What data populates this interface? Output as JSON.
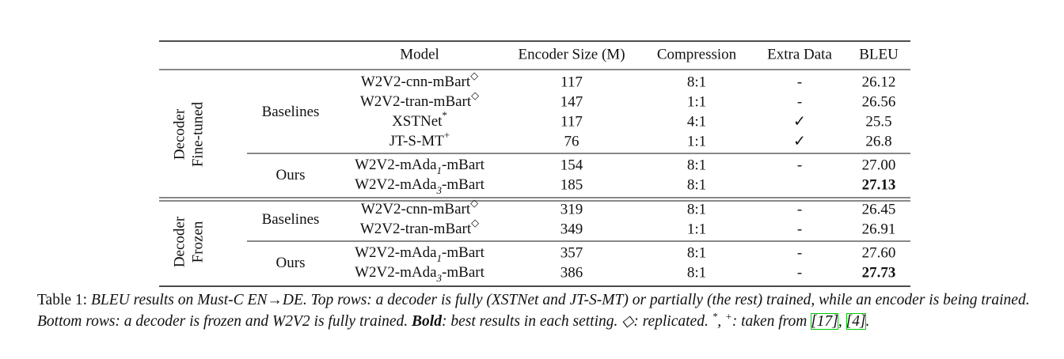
{
  "table": {
    "headers": [
      "Model",
      "Encoder Size (M)",
      "Compression",
      "Extra Data",
      "BLEU"
    ],
    "groups": [
      {
        "label": [
          "Decoder",
          "Fine-tuned"
        ],
        "subgroups": [
          {
            "label": "Baselines",
            "rows": [
              {
                "model": {
                  "name": "W2V2-cnn-mBart",
                  "sup": "◇"
                },
                "cells": [
                  "117",
                  "8:1",
                  "-",
                  "26.12"
                ]
              },
              {
                "model": {
                  "name": "W2V2-tran-mBart",
                  "sup": "◇"
                },
                "cells": [
                  "147",
                  "1:1",
                  "-",
                  "26.56"
                ]
              },
              {
                "model": {
                  "name": "XSTNet",
                  "sup": "*"
                },
                "cells": [
                  "117",
                  "4:1",
                  "✓",
                  "25.5"
                ]
              },
              {
                "model": {
                  "name": "JT-S-MT",
                  "sup": "+"
                },
                "cells": [
                  "76",
                  "1:1",
                  "✓",
                  "26.8"
                ]
              }
            ]
          },
          {
            "label": "Ours",
            "rows": [
              {
                "model": {
                  "name": "W2V2-mAda",
                  "sub": "1",
                  "post": "-mBart"
                },
                "cells": [
                  "154",
                  "8:1",
                  "-",
                  "27.00"
                ]
              },
              {
                "model": {
                  "name": "W2V2-mAda",
                  "sub": "3",
                  "post": "-mBart"
                },
                "cells": [
                  "185",
                  "8:1",
                  null,
                  "27.13"
                ],
                "bold_last": true
              }
            ]
          }
        ]
      },
      {
        "label": [
          "Decoder",
          "Frozen"
        ],
        "subgroups": [
          {
            "label": "Baselines",
            "rows": [
              {
                "model": {
                  "name": "W2V2-cnn-mBart",
                  "sup": "◇"
                },
                "cells": [
                  "319",
                  "8:1",
                  "-",
                  "26.45"
                ]
              },
              {
                "model": {
                  "name": "W2V2-tran-mBart",
                  "sup": "◇"
                },
                "cells": [
                  "349",
                  "1:1",
                  "-",
                  "26.91"
                ]
              }
            ]
          },
          {
            "label": "Ours",
            "rows": [
              {
                "model": {
                  "name": "W2V2-mAda",
                  "sub": "1",
                  "post": "-mBart"
                },
                "cells": [
                  "357",
                  "8:1",
                  "-",
                  "27.60"
                ]
              },
              {
                "model": {
                  "name": "W2V2-mAda",
                  "sub": "3",
                  "post": "-mBart"
                },
                "cells": [
                  "386",
                  "8:1",
                  "-",
                  "27.73"
                ],
                "bold_last": true
              }
            ]
          }
        ]
      }
    ]
  },
  "caption": [
    {
      "text": "Table 1: ",
      "style": "normal"
    },
    {
      "text": "BLEU results on Must-C EN→DE. Top rows: a decoder is fully (XSTNet and JT-S-MT) or partially (the rest) trained, while an encoder is being trained. Bottom rows: a decoder is frozen and W2V2 is fully trained. ",
      "style": "italic"
    },
    {
      "text": "Bold",
      "style": "bold"
    },
    {
      "text": ": best results in each setting. ◇: replicated. ",
      "style": "italic"
    },
    {
      "text": "*",
      "style": "sup"
    },
    {
      "text": ", ",
      "style": "italic"
    },
    {
      "text": "+",
      "style": "sup"
    },
    {
      "text": ": taken from ",
      "style": "italic"
    },
    {
      "text": "[17]",
      "style": "ref"
    },
    {
      "text": ", ",
      "style": "italic"
    },
    {
      "text": "[4]",
      "style": "ref"
    },
    {
      "text": ".",
      "style": "italic"
    }
  ]
}
